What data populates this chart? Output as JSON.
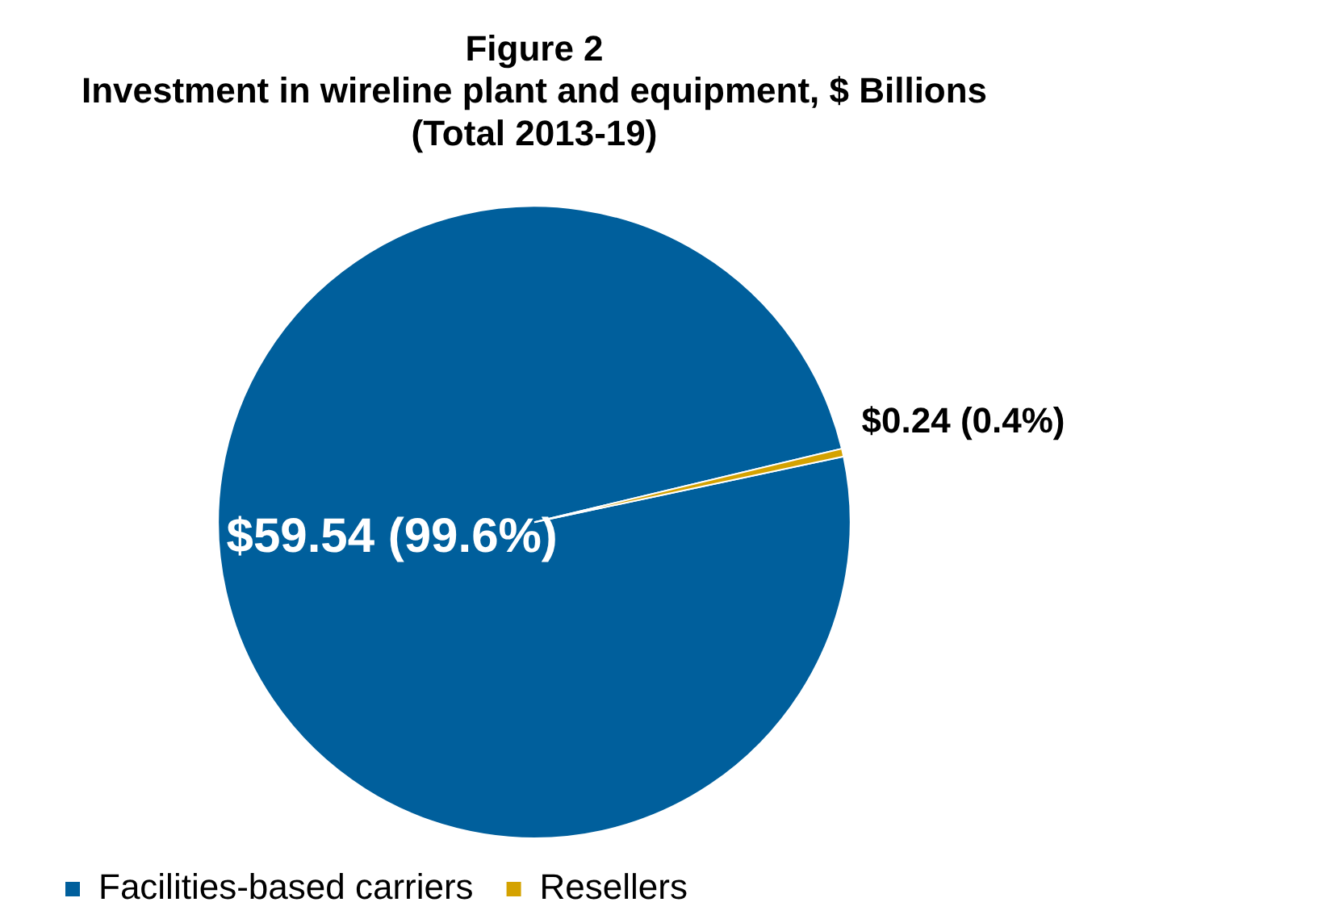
{
  "chart_data": {
    "type": "pie",
    "title": "Figure 2\nInvestment in wireline plant and equipment, $ Billions\n(Total 2013-19)",
    "categories": [
      "Facilities-based carriers",
      "Resellers"
    ],
    "values": [
      59.54,
      0.24
    ],
    "colors": [
      "#005f9c",
      "#d4a200"
    ],
    "value_labels": [
      "$59.54 (99.6%)",
      "$0.24 (0.4%)"
    ],
    "legend": "bottom"
  }
}
